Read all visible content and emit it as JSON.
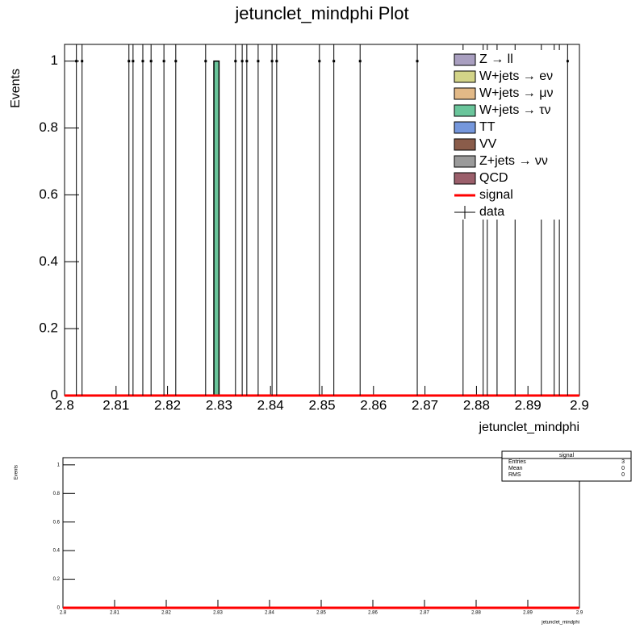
{
  "chart_data": [
    {
      "type": "histogram",
      "title": "jetunclet_mindphi Plot",
      "x_label": "jetunclet_mindphi",
      "y_label": "Events",
      "xlim": [
        2.8,
        2.9
      ],
      "xticks": [
        2.8,
        2.81,
        2.82,
        2.83,
        2.84,
        2.85,
        2.86,
        2.87,
        2.88,
        2.89,
        2.9
      ],
      "ylim": [
        0,
        1.05
      ],
      "yticks": [
        0,
        0.2,
        0.4,
        0.6,
        0.8,
        1
      ],
      "legend": "top-right",
      "series": [
        {
          "name": "Z → ll",
          "color": "#a99fc0",
          "kind": "stack",
          "bins": [
            2.829,
            2.83
          ],
          "values": [
            0
          ]
        },
        {
          "name": "W+jets → eν",
          "color": "#d3d488",
          "kind": "stack",
          "bins": [
            2.829,
            2.83
          ],
          "values": [
            0
          ]
        },
        {
          "name": "W+jets → μν",
          "color": "#e2b987",
          "kind": "stack",
          "bins": [
            2.829,
            2.83
          ],
          "values": [
            0
          ]
        },
        {
          "name": "W+jets → τν",
          "color": "#6ac59b",
          "kind": "stack",
          "bins": [
            2.829,
            2.83
          ],
          "values": [
            1
          ]
        },
        {
          "name": "TT",
          "color": "#7597dc",
          "kind": "stack",
          "bins": [
            2.829,
            2.83
          ],
          "values": [
            0
          ]
        },
        {
          "name": "VV",
          "color": "#8a5c4a",
          "kind": "stack",
          "bins": [
            2.829,
            2.83
          ],
          "values": [
            0
          ]
        },
        {
          "name": "Z+jets → νν",
          "color": "#9a9a9a",
          "kind": "stack",
          "bins": [
            2.829,
            2.83
          ],
          "values": [
            0
          ]
        },
        {
          "name": "QCD",
          "color": "#9b5f6b",
          "kind": "stack",
          "bins": [
            2.829,
            2.83
          ],
          "values": [
            0
          ]
        },
        {
          "name": "signal",
          "color": "#ff0000",
          "kind": "line",
          "x": [
            2.8,
            2.9
          ],
          "values": [
            0,
            0
          ]
        },
        {
          "name": "data",
          "color": "#000000",
          "kind": "points",
          "x": [
            2.8023,
            2.8034,
            2.8125,
            2.8133,
            2.8152,
            2.8168,
            2.8193,
            2.8216,
            2.8274,
            2.8332,
            2.8345,
            2.8354,
            2.8376,
            2.8403,
            2.8412,
            2.8495,
            2.8523,
            2.8574,
            2.8685,
            2.8774,
            2.8813,
            2.8821,
            2.884,
            2.8875,
            2.8926,
            2.8951,
            2.8961,
            2.8977
          ],
          "values": [
            1,
            1,
            1,
            1,
            1,
            1,
            1,
            1,
            1,
            1,
            1,
            1,
            1,
            1,
            1,
            1,
            1,
            1,
            1,
            1,
            1,
            1,
            1,
            1,
            1,
            1,
            1,
            1
          ],
          "errors": [
            1,
            1,
            1,
            1,
            1,
            1,
            1,
            1,
            1,
            1,
            1,
            1,
            1,
            1,
            1,
            1,
            1,
            1,
            1,
            1,
            1,
            1,
            1,
            1,
            1,
            1,
            1,
            1
          ]
        }
      ]
    },
    {
      "type": "histogram",
      "x_label": "jetunclet_mindphi",
      "y_label": "Events",
      "xlim": [
        2.8,
        2.9
      ],
      "xticks": [
        2.8,
        2.81,
        2.82,
        2.83,
        2.84,
        2.85,
        2.86,
        2.87,
        2.88,
        2.89,
        2.9
      ],
      "ylim": [
        0,
        1.05
      ],
      "yticks": [
        0,
        0.2,
        0.4,
        0.6,
        0.8,
        1
      ],
      "series": [
        {
          "name": "signal",
          "color": "#ff0000",
          "kind": "line",
          "x": [
            2.8,
            2.9
          ],
          "values": [
            0,
            0
          ]
        }
      ],
      "stats": {
        "title": "signal",
        "rows": [
          {
            "label": "Entries",
            "value": 3
          },
          {
            "label": "Mean",
            "value": 0
          },
          {
            "label": "RMS",
            "value": 0
          }
        ]
      }
    }
  ]
}
